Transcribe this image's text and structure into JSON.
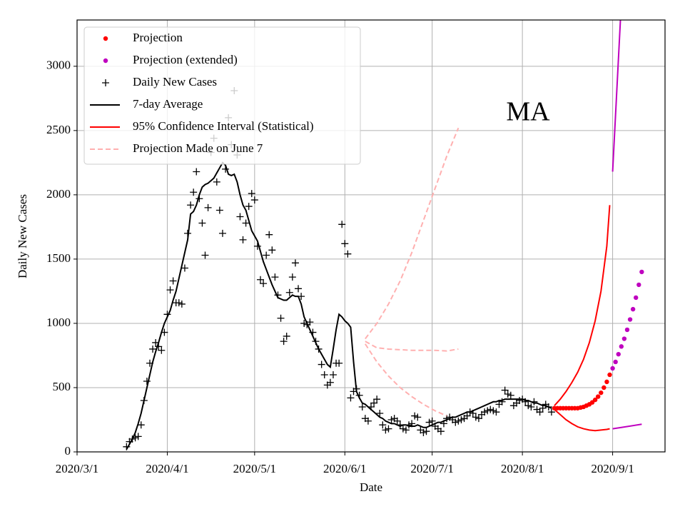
{
  "chart_data": {
    "type": "line",
    "annotation": "MA",
    "xlabel": "Date",
    "ylabel": "Daily New Cases",
    "xlim": [
      "2020-03-01",
      "2020-09-19"
    ],
    "ylim": [
      0,
      3360
    ],
    "xticks": [
      {
        "value": "2020-03-01",
        "label": "2020/3/1"
      },
      {
        "value": "2020-04-01",
        "label": "2020/4/1"
      },
      {
        "value": "2020-05-01",
        "label": "2020/5/1"
      },
      {
        "value": "2020-06-01",
        "label": "2020/6/1"
      },
      {
        "value": "2020-07-01",
        "label": "2020/7/1"
      },
      {
        "value": "2020-08-01",
        "label": "2020/8/1"
      },
      {
        "value": "2020-09-01",
        "label": "2020/9/1"
      }
    ],
    "yticks": [
      0,
      500,
      1000,
      1500,
      2000,
      2500,
      3000
    ],
    "grid": true,
    "legend": "upper left",
    "x": [
      "2020-03-18",
      "2020-03-19",
      "2020-03-20",
      "2020-03-21",
      "2020-03-22",
      "2020-03-23",
      "2020-03-24",
      "2020-03-25",
      "2020-03-26",
      "2020-03-27",
      "2020-03-28",
      "2020-03-29",
      "2020-03-30",
      "2020-03-31",
      "2020-04-01",
      "2020-04-02",
      "2020-04-03",
      "2020-04-04",
      "2020-04-05",
      "2020-04-06",
      "2020-04-07",
      "2020-04-08",
      "2020-04-09",
      "2020-04-10",
      "2020-04-11",
      "2020-04-12",
      "2020-04-13",
      "2020-04-14",
      "2020-04-15",
      "2020-04-16",
      "2020-04-17",
      "2020-04-18",
      "2020-04-19",
      "2020-04-20",
      "2020-04-21",
      "2020-04-22",
      "2020-04-23",
      "2020-04-24",
      "2020-04-25",
      "2020-04-26",
      "2020-04-27",
      "2020-04-28",
      "2020-04-29",
      "2020-04-30",
      "2020-05-01",
      "2020-05-02",
      "2020-05-03",
      "2020-05-04",
      "2020-05-05",
      "2020-05-06",
      "2020-05-07",
      "2020-05-08",
      "2020-05-09",
      "2020-05-10",
      "2020-05-11",
      "2020-05-12",
      "2020-05-13",
      "2020-05-14",
      "2020-05-15",
      "2020-05-16",
      "2020-05-17",
      "2020-05-18",
      "2020-05-19",
      "2020-05-20",
      "2020-05-21",
      "2020-05-22",
      "2020-05-23",
      "2020-05-24",
      "2020-05-25",
      "2020-05-26",
      "2020-05-27",
      "2020-05-28",
      "2020-05-29",
      "2020-05-30",
      "2020-05-31",
      "2020-06-01",
      "2020-06-02",
      "2020-06-03",
      "2020-06-04",
      "2020-06-05",
      "2020-06-06",
      "2020-06-07",
      "2020-06-08",
      "2020-06-09",
      "2020-06-10",
      "2020-06-11",
      "2020-06-12",
      "2020-06-13",
      "2020-06-14",
      "2020-06-15",
      "2020-06-16",
      "2020-06-17",
      "2020-06-18",
      "2020-06-19",
      "2020-06-20",
      "2020-06-21",
      "2020-06-22",
      "2020-06-23",
      "2020-06-24",
      "2020-06-25",
      "2020-06-26",
      "2020-06-27",
      "2020-06-28",
      "2020-06-29",
      "2020-06-30",
      "2020-07-01",
      "2020-07-02",
      "2020-07-03",
      "2020-07-04",
      "2020-07-05",
      "2020-07-06",
      "2020-07-07",
      "2020-07-08",
      "2020-07-09",
      "2020-07-10",
      "2020-07-11",
      "2020-07-12",
      "2020-07-13",
      "2020-07-14",
      "2020-07-15",
      "2020-07-16",
      "2020-07-17",
      "2020-07-18",
      "2020-07-19",
      "2020-07-20",
      "2020-07-21",
      "2020-07-22",
      "2020-07-23",
      "2020-07-24",
      "2020-07-25",
      "2020-07-26",
      "2020-07-27",
      "2020-07-28",
      "2020-07-29",
      "2020-07-30",
      "2020-07-31",
      "2020-08-01",
      "2020-08-02",
      "2020-08-03",
      "2020-08-04",
      "2020-08-05",
      "2020-08-06",
      "2020-08-07",
      "2020-08-08",
      "2020-08-09",
      "2020-08-10",
      "2020-08-11"
    ],
    "series": [
      {
        "name": "Projection",
        "color": "#ff0000",
        "marker": "o",
        "x": [
          "2020-08-12",
          "2020-08-13",
          "2020-08-14",
          "2020-08-15",
          "2020-08-16",
          "2020-08-17",
          "2020-08-18",
          "2020-08-19",
          "2020-08-20",
          "2020-08-21",
          "2020-08-22",
          "2020-08-23",
          "2020-08-24",
          "2020-08-25",
          "2020-08-26",
          "2020-08-27",
          "2020-08-28",
          "2020-08-29",
          "2020-08-30",
          "2020-08-31"
        ],
        "values": [
          340,
          340,
          340,
          340,
          340,
          340,
          340,
          340,
          340,
          345,
          350,
          360,
          370,
          385,
          405,
          430,
          460,
          500,
          545,
          600
        ]
      },
      {
        "name": "Projection (extended)",
        "color": "#bf00bf",
        "marker": "o",
        "x": [
          "2020-09-01",
          "2020-09-02",
          "2020-09-03",
          "2020-09-04",
          "2020-09-05",
          "2020-09-06",
          "2020-09-07",
          "2020-09-08",
          "2020-09-09",
          "2020-09-10",
          "2020-09-11"
        ],
        "values": [
          650,
          700,
          760,
          820,
          880,
          950,
          1030,
          1110,
          1200,
          1300,
          1400
        ]
      },
      {
        "name": "Daily New Cases",
        "color": "#000000",
        "marker": "+",
        "values": [
          40,
          80,
          100,
          110,
          120,
          210,
          400,
          550,
          690,
          800,
          850,
          820,
          790,
          930,
          1070,
          1260,
          1330,
          1160,
          1160,
          1150,
          1430,
          1700,
          1920,
          2020,
          2180,
          1970,
          1780,
          1530,
          1900,
          2330,
          2440,
          2100,
          1880,
          1700,
          2200,
          2600,
          2390,
          2810,
          2310,
          1830,
          1650,
          1780,
          1910,
          2010,
          1960,
          1600,
          1340,
          1310,
          1530,
          1690,
          1570,
          1360,
          1220,
          1040,
          860,
          900,
          1240,
          1360,
          1470,
          1270,
          1210,
          1000,
          990,
          1010,
          930,
          860,
          800,
          680,
          600,
          520,
          540,
          600,
          690,
          690,
          1770,
          1620,
          1540,
          420,
          470,
          490,
          440,
          350,
          260,
          240,
          350,
          380,
          410,
          300,
          210,
          170,
          180,
          250,
          260,
          240,
          210,
          180,
          170,
          210,
          220,
          280,
          270,
          170,
          150,
          160,
          230,
          240,
          200,
          180,
          160,
          220,
          260,
          270,
          250,
          230,
          240,
          250,
          260,
          280,
          310,
          300,
          270,
          260,
          290,
          310,
          320,
          330,
          320,
          310,
          370,
          390,
          480,
          450,
          440,
          360,
          380,
          400,
          410,
          390,
          360,
          350,
          390,
          330,
          310,
          340,
          370,
          350,
          310
        ]
      },
      {
        "name": "7-day Average",
        "color": "#000000",
        "line": "solid",
        "values": [
          20,
          60,
          100,
          150,
          220,
          300,
          400,
          500,
          600,
          700,
          780,
          850,
          930,
          1000,
          1050,
          1100,
          1180,
          1250,
          1350,
          1450,
          1550,
          1650,
          1850,
          1870,
          1920,
          2000,
          2060,
          2080,
          2090,
          2110,
          2130,
          2170,
          2210,
          2250,
          2230,
          2160,
          2150,
          2160,
          2100,
          2000,
          1920,
          1880,
          1800,
          1720,
          1680,
          1640,
          1560,
          1480,
          1420,
          1360,
          1300,
          1250,
          1200,
          1190,
          1180,
          1180,
          1200,
          1220,
          1210,
          1210,
          1150,
          1050,
          1000,
          950,
          900,
          850,
          800,
          760,
          720,
          680,
          660,
          800,
          950,
          1070,
          1050,
          1020,
          1000,
          970,
          700,
          470,
          420,
          380,
          370,
          350,
          330,
          310,
          290,
          270,
          260,
          240,
          230,
          220,
          220,
          210,
          200,
          210,
          210,
          200,
          200,
          200,
          210,
          200,
          190,
          190,
          200,
          210,
          220,
          230,
          230,
          240,
          250,
          260,
          270,
          270,
          280,
          290,
          300,
          310,
          310,
          320,
          330,
          340,
          350,
          360,
          370,
          380,
          390,
          390,
          400,
          400,
          410,
          410,
          410,
          410,
          410,
          410,
          410,
          400,
          400,
          390,
          380,
          380,
          370,
          360,
          360,
          350,
          340
        ]
      },
      {
        "name": "95% Confidence Interval (Statistical)",
        "color": "#ff0000",
        "line": "solid",
        "x": [
          "2020-08-12",
          "2020-08-14",
          "2020-08-16",
          "2020-08-18",
          "2020-08-20",
          "2020-08-22",
          "2020-08-24",
          "2020-08-26",
          "2020-08-28",
          "2020-08-30",
          "2020-08-31"
        ],
        "upper": [
          360,
          410,
          470,
          540,
          620,
          720,
          850,
          1020,
          1250,
          1600,
          1920
        ],
        "lower": [
          330,
          290,
          250,
          220,
          195,
          180,
          170,
          165,
          170,
          175,
          180
        ]
      },
      {
        "name": "Projection Made on June 7",
        "color": "#ffb0b0",
        "line": "dashed",
        "x": [
          "2020-06-08",
          "2020-06-12",
          "2020-06-16",
          "2020-06-20",
          "2020-06-24",
          "2020-06-28",
          "2020-07-02",
          "2020-07-06",
          "2020-07-10"
        ],
        "upper": [
          880,
          1000,
          1150,
          1330,
          1550,
          1800,
          2050,
          2300,
          2520
        ],
        "middle": [
          860,
          810,
          800,
          795,
          790,
          790,
          790,
          785,
          800
        ],
        "lower": [
          840,
          700,
          590,
          500,
          430,
          370,
          320,
          280,
          null
        ]
      },
      {
        "color": "#bf00bf",
        "line": "solid",
        "x": [
          "2020-09-01",
          "2020-09-04",
          "2020-09-11"
        ],
        "upper": [
          2180,
          3500,
          null
        ],
        "lower": [
          180,
          190,
          215
        ]
      }
    ]
  }
}
